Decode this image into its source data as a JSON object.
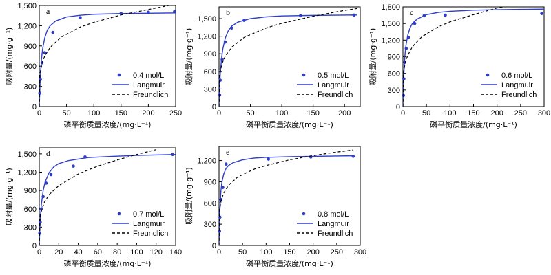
{
  "chart_data": [
    {
      "type": "scatter",
      "panel_label": "a",
      "xlabel": "磷平衡质量浓度/(mg·L⁻¹)",
      "ylabel": "吸附量/(mg·g⁻¹)",
      "xlim": [
        0,
        250
      ],
      "ylim": [
        0,
        1500
      ],
      "xticks": [
        0,
        50,
        100,
        150,
        200,
        250
      ],
      "yticks": [
        0,
        300,
        600,
        900,
        1200,
        1500
      ],
      "legend_position": "bottom-right",
      "series": [
        {
          "name": "0.4 mol/L",
          "type": "scatter",
          "color": "#2e3ec8",
          "x": [
            1,
            2,
            5,
            10,
            25,
            75,
            150,
            200,
            248
          ],
          "y": [
            200,
            400,
            650,
            800,
            1100,
            1320,
            1380,
            1400,
            1410
          ]
        },
        {
          "name": "Langmuir",
          "type": "line",
          "color": "#2e3ec8",
          "dash": "solid",
          "x": [
            0,
            1,
            2,
            4,
            6,
            10,
            15,
            20,
            30,
            50,
            75,
            100,
            150,
            200,
            250
          ],
          "y": [
            0,
            250,
            450,
            700,
            850,
            1020,
            1140,
            1200,
            1270,
            1330,
            1355,
            1370,
            1380,
            1385,
            1390
          ]
        },
        {
          "name": "Freundlich",
          "type": "line",
          "color": "#000000",
          "dash": "dashed",
          "x": [
            0,
            1,
            5,
            10,
            20,
            40,
            75,
            100,
            150,
            200,
            250
          ],
          "y": [
            0,
            480,
            640,
            750,
            880,
            1030,
            1180,
            1250,
            1360,
            1440,
            1520
          ]
        }
      ]
    },
    {
      "type": "scatter",
      "panel_label": "b",
      "xlabel": "磷平衡质量浓度/(mg·L⁻¹)",
      "ylabel": "吸附量/(mg·g⁻¹)",
      "xlim": [
        0,
        225
      ],
      "ylim": [
        0,
        1700
      ],
      "xticks": [
        0,
        50,
        100,
        150,
        200
      ],
      "yticks": [
        0,
        300,
        600,
        900,
        1200,
        1500
      ],
      "legend_position": "bottom-right",
      "series": [
        {
          "name": "0.5 mol/L",
          "type": "scatter",
          "color": "#2e3ec8",
          "x": [
            1,
            2,
            5,
            10,
            20,
            40,
            130,
            215
          ],
          "y": [
            200,
            450,
            800,
            1100,
            1340,
            1470,
            1550,
            1560
          ]
        },
        {
          "name": "Langmuir",
          "type": "line",
          "color": "#2e3ec8",
          "dash": "solid",
          "x": [
            0,
            1,
            2,
            4,
            6,
            10,
            15,
            20,
            30,
            50,
            75,
            100,
            150,
            200,
            220
          ],
          "y": [
            0,
            350,
            560,
            820,
            980,
            1170,
            1300,
            1370,
            1440,
            1500,
            1530,
            1545,
            1555,
            1560,
            1562
          ]
        },
        {
          "name": "Freundlich",
          "type": "line",
          "color": "#000000",
          "dash": "dashed",
          "x": [
            0,
            1,
            5,
            10,
            20,
            40,
            75,
            100,
            150,
            200,
            225
          ],
          "y": [
            0,
            550,
            740,
            860,
            1010,
            1180,
            1340,
            1420,
            1540,
            1640,
            1680
          ]
        }
      ]
    },
    {
      "type": "scatter",
      "panel_label": "c",
      "xlabel": "磷平衡质量浓度/(mg·L⁻¹)",
      "ylabel": "吸附量/(mg·g⁻¹)",
      "xlim": [
        0,
        300
      ],
      "ylim": [
        0,
        1800
      ],
      "xticks": [
        0,
        50,
        100,
        150,
        200,
        250,
        300
      ],
      "yticks": [
        0,
        300,
        600,
        900,
        1200,
        1500,
        1800
      ],
      "legend_position": "bottom-right",
      "series": [
        {
          "name": "0.6 mol/L",
          "type": "scatter",
          "color": "#2e3ec8",
          "x": [
            1,
            2,
            4,
            7,
            12,
            25,
            45,
            90,
            295
          ],
          "y": [
            200,
            500,
            800,
            1050,
            1250,
            1500,
            1640,
            1650,
            1680
          ]
        },
        {
          "name": "Langmuir",
          "type": "line",
          "color": "#2e3ec8",
          "dash": "solid",
          "x": [
            0,
            1,
            2,
            4,
            6,
            10,
            15,
            20,
            30,
            50,
            75,
            100,
            150,
            200,
            250,
            300
          ],
          "y": [
            0,
            350,
            600,
            900,
            1080,
            1280,
            1420,
            1500,
            1580,
            1660,
            1700,
            1720,
            1740,
            1750,
            1755,
            1760
          ]
        },
        {
          "name": "Freundlich",
          "type": "line",
          "color": "#000000",
          "dash": "dashed",
          "x": [
            0,
            1,
            5,
            10,
            20,
            40,
            75,
            100,
            150,
            200,
            250
          ],
          "y": [
            0,
            600,
            800,
            920,
            1080,
            1260,
            1440,
            1530,
            1660,
            1780,
            1860
          ]
        }
      ]
    },
    {
      "type": "scatter",
      "panel_label": "d",
      "xlabel": "磷平衡质量浓度/(mg·L⁻¹)",
      "ylabel": "吸附量/(mg·g⁻¹)",
      "xlim": [
        0,
        140
      ],
      "ylim": [
        0,
        1600
      ],
      "xticks": [
        0,
        20,
        40,
        60,
        80,
        100,
        120,
        140
      ],
      "yticks": [
        0,
        300,
        600,
        900,
        1200,
        1500
      ],
      "legend_position": "bottom-right",
      "series": [
        {
          "name": "0.7 mol/L",
          "type": "scatter",
          "color": "#2e3ec8",
          "x": [
            0.5,
            1,
            2,
            4,
            7,
            12,
            35,
            47,
            137
          ],
          "y": [
            200,
            380,
            600,
            800,
            1020,
            1160,
            1300,
            1450,
            1490
          ]
        },
        {
          "name": "Langmuir",
          "type": "line",
          "color": "#2e3ec8",
          "dash": "solid",
          "x": [
            0,
            0.5,
            1,
            2,
            4,
            6,
            10,
            15,
            20,
            30,
            50,
            75,
            100,
            140
          ],
          "y": [
            0,
            250,
            420,
            650,
            900,
            1040,
            1190,
            1290,
            1340,
            1390,
            1440,
            1460,
            1475,
            1490
          ]
        },
        {
          "name": "Freundlich",
          "type": "line",
          "color": "#000000",
          "dash": "dashed",
          "x": [
            0,
            1,
            5,
            10,
            20,
            40,
            60,
            80,
            100,
            120
          ],
          "y": [
            0,
            500,
            700,
            830,
            980,
            1170,
            1300,
            1400,
            1490,
            1570
          ]
        }
      ]
    },
    {
      "type": "scatter",
      "panel_label": "e",
      "xlabel": "磷平衡质量浓度/(mg·L⁻¹)",
      "ylabel": "吸附量/(mg·g⁻¹)",
      "xlim": [
        0,
        300
      ],
      "ylim": [
        0,
        1400
      ],
      "xticks": [
        0,
        50,
        100,
        150,
        200,
        250,
        300
      ],
      "yticks": [
        0,
        300,
        600,
        900,
        1200
      ],
      "legend_position": "bottom-right",
      "series": [
        {
          "name": "0.8 mol/L",
          "type": "scatter",
          "color": "#2e3ec8",
          "x": [
            1,
            2,
            4,
            8,
            15,
            105,
            195,
            285
          ],
          "y": [
            200,
            400,
            650,
            820,
            1150,
            1220,
            1250,
            1260
          ]
        },
        {
          "name": "Langmuir",
          "type": "line",
          "color": "#2e3ec8",
          "dash": "solid",
          "x": [
            0,
            1,
            2,
            4,
            6,
            10,
            15,
            20,
            30,
            50,
            75,
            100,
            150,
            200,
            250,
            285
          ],
          "y": [
            0,
            300,
            520,
            770,
            890,
            1010,
            1090,
            1130,
            1170,
            1210,
            1235,
            1245,
            1255,
            1260,
            1265,
            1268
          ]
        },
        {
          "name": "Freundlich",
          "type": "line",
          "color": "#000000",
          "dash": "dashed",
          "x": [
            0,
            1,
            5,
            10,
            20,
            40,
            75,
            100,
            150,
            200,
            250,
            285
          ],
          "y": [
            0,
            500,
            650,
            740,
            850,
            970,
            1080,
            1130,
            1210,
            1270,
            1320,
            1350
          ]
        }
      ]
    }
  ]
}
